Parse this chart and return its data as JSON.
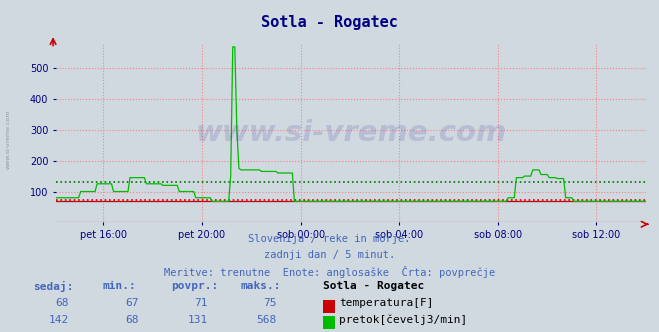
{
  "title": "Sotla - Rogatec",
  "title_color": "#000080",
  "bg_color": "#d0d8e0",
  "plot_bg_color": "#d0d8e0",
  "grid_color": "#ff8080",
  "grid_style": ":",
  "ylim": [
    0,
    580
  ],
  "yticks": [
    100,
    200,
    300,
    400,
    500
  ],
  "xlabel_color": "#000080",
  "xtick_labels": [
    "pet 16:00",
    "pet 20:00",
    "sob 00:00",
    "sob 04:00",
    "sob 08:00",
    "sob 12:00"
  ],
  "xtick_positions": [
    0.083,
    0.25,
    0.417,
    0.583,
    0.75,
    0.917
  ],
  "temp_color": "#cc0000",
  "flow_color": "#00bb00",
  "avg_temp_color": "#cc0000",
  "avg_flow_color": "#007700",
  "watermark": "www.si-vreme.com",
  "watermark_color": "#000080",
  "watermark_alpha": 0.12,
  "subtitle1": "Slovenija / reke in morje.",
  "subtitle2": "zadnji dan / 5 minut.",
  "subtitle3": "Meritve: trenutne  Enote: anglosaške  Črta: povprečje",
  "subtitle_color": "#4466bb",
  "legend_title": "Sotla - Rogatec",
  "temp_label": "temperatura[F]",
  "flow_label": "pretok[čevelj3/min]",
  "table_headers": [
    "sedaj:",
    "min.:",
    "povpr.:",
    "maks.:"
  ],
  "temp_row": [
    "68",
    "67",
    "71",
    "75"
  ],
  "flow_row": [
    "142",
    "68",
    "131",
    "568"
  ],
  "avg_temp": 71,
  "avg_flow": 131,
  "n_points": 288,
  "sidebar_text": "www.si-vreme.com",
  "sidebar_color": "#888888",
  "temp_color_box": "#cc0000",
  "flow_color_box": "#00bb00"
}
